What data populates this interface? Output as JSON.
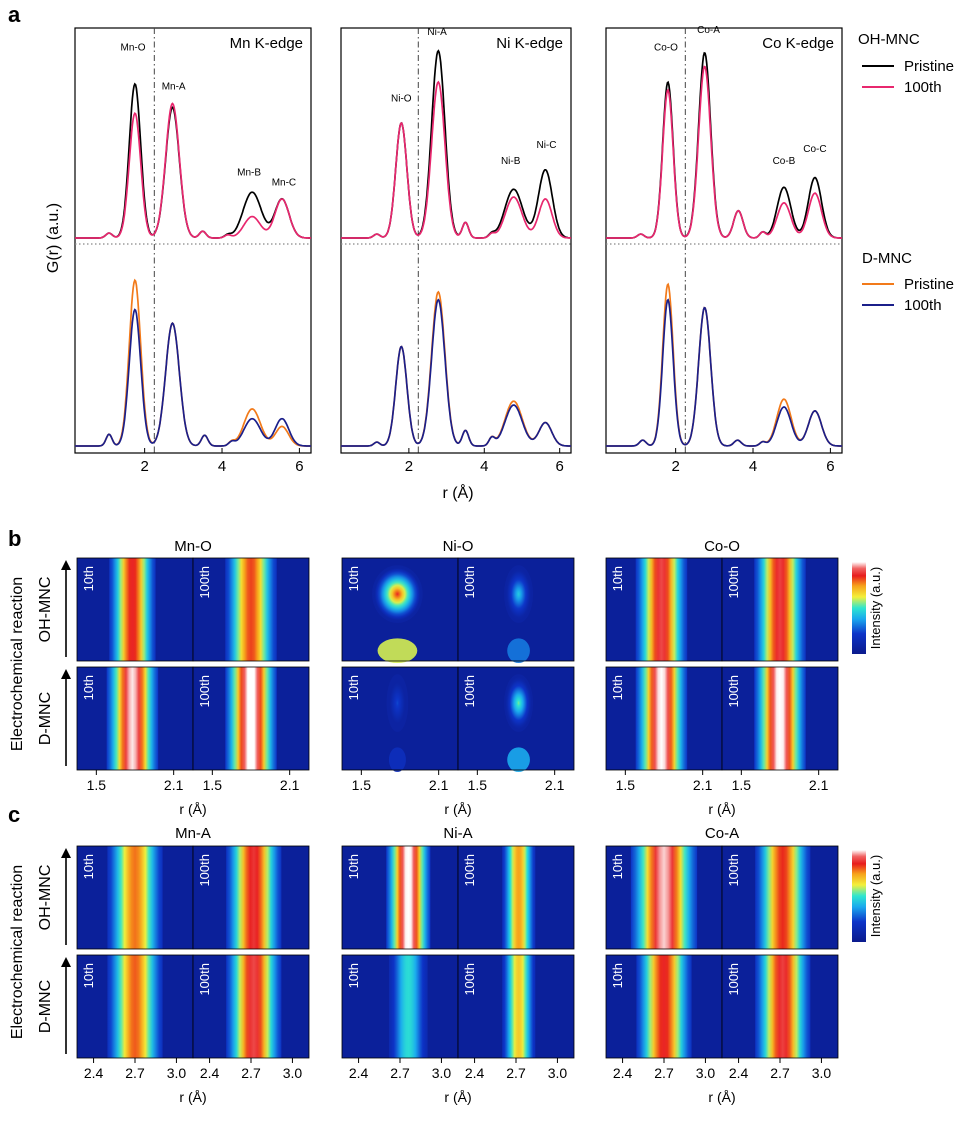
{
  "panel_labels": {
    "a": "a",
    "b": "b",
    "c": "c"
  },
  "colors": {
    "oh_pristine": "#000000",
    "oh_100th": "#e8276e",
    "d_pristine": "#f27a1a",
    "d_100th": "#1b1f8a"
  },
  "legend": {
    "oh_title": "OH-MNC",
    "oh_pristine": "Pristine",
    "oh_100th": "100th",
    "d_title": "D-MNC",
    "d_pristine": "Pristine",
    "d_100th": "100th"
  },
  "heatmap_text": {
    "intensity_label": "Intensity (a.u.)",
    "y_axis_label": "Electrochemical reaction",
    "row_labels": [
      "OH-MNC",
      "D-MNC"
    ],
    "cycle_labels": [
      "10th",
      "100th"
    ]
  },
  "chart_data": [
    {
      "id": "a",
      "type": "line",
      "ylabel": "G(r) (a.u.)",
      "xlabel": "r (Å)",
      "xlim": [
        0.2,
        6.3
      ],
      "xticks": [
        "2",
        "4",
        "6"
      ],
      "dashdot_r": 2.25,
      "panels": [
        {
          "title": "Mn K-edge",
          "peak_labels": [
            {
              "text": "Mn-O",
              "r": 1.7,
              "y": 0.94
            },
            {
              "text": "Mn-A",
              "r": 2.75,
              "y": 0.74
            },
            {
              "text": "Mn-B",
              "r": 4.7,
              "y": 0.3
            },
            {
              "text": "Mn-C",
              "r": 5.6,
              "y": 0.25
            }
          ],
          "oh": {
            "base": [
              [
                1.08,
                0.025,
                0.12
              ],
              [
                3.5,
                0.035,
                0.12
              ],
              [
                4.15,
                0.015,
                0.12
              ]
            ],
            "pristine": [
              [
                1.75,
                0.79,
                0.21
              ],
              [
                2.72,
                0.67,
                0.25
              ],
              [
                4.78,
                0.235,
                0.33
              ],
              [
                5.55,
                0.2,
                0.26
              ]
            ],
            "cycled": [
              [
                1.75,
                0.64,
                0.21
              ],
              [
                2.72,
                0.69,
                0.25
              ],
              [
                4.78,
                0.11,
                0.3
              ],
              [
                5.55,
                0.2,
                0.26
              ]
            ]
          },
          "d": {
            "base": [
              [
                1.08,
                0.06,
                0.11
              ],
              [
                3.55,
                0.055,
                0.12
              ],
              [
                4.25,
                0.02,
                0.11
              ]
            ],
            "pristine": [
              [
                1.75,
                0.85,
                0.21
              ],
              [
                2.72,
                0.63,
                0.25
              ],
              [
                4.78,
                0.19,
                0.3
              ],
              [
                5.55,
                0.1,
                0.24
              ]
            ],
            "cycled": [
              [
                1.75,
                0.7,
                0.21
              ],
              [
                2.72,
                0.63,
                0.25
              ],
              [
                4.78,
                0.14,
                0.3
              ],
              [
                5.55,
                0.14,
                0.25
              ]
            ]
          }
        },
        {
          "title": "Ni K-edge",
          "peak_labels": [
            {
              "text": "Ni-O",
              "r": 1.8,
              "y": 0.68
            },
            {
              "text": "Ni-A",
              "r": 2.75,
              "y": 1.02
            },
            {
              "text": "Ni-B",
              "r": 4.7,
              "y": 0.36
            },
            {
              "text": "Ni-C",
              "r": 5.65,
              "y": 0.44
            }
          ],
          "oh": {
            "base": [
              [
                1.15,
                0.02,
                0.12
              ],
              [
                3.5,
                0.08,
                0.12
              ],
              [
                4.2,
                0.02,
                0.11
              ]
            ],
            "pristine": [
              [
                1.8,
                0.59,
                0.21
              ],
              [
                2.78,
                0.96,
                0.25
              ],
              [
                4.78,
                0.25,
                0.33
              ],
              [
                5.62,
                0.35,
                0.26
              ]
            ],
            "cycled": [
              [
                1.8,
                0.59,
                0.21
              ],
              [
                2.78,
                0.8,
                0.25
              ],
              [
                4.78,
                0.21,
                0.31
              ],
              [
                5.62,
                0.2,
                0.25
              ]
            ]
          },
          "d": {
            "base": [
              [
                1.15,
                0.02,
                0.11
              ],
              [
                3.5,
                0.08,
                0.12
              ],
              [
                4.2,
                0.04,
                0.11
              ]
            ],
            "pristine": [
              [
                1.8,
                0.51,
                0.21
              ],
              [
                2.78,
                0.79,
                0.25
              ],
              [
                4.78,
                0.23,
                0.32
              ],
              [
                5.62,
                0.12,
                0.24
              ]
            ],
            "cycled": [
              [
                1.8,
                0.51,
                0.21
              ],
              [
                2.78,
                0.75,
                0.25
              ],
              [
                4.78,
                0.21,
                0.32
              ],
              [
                5.62,
                0.12,
                0.24
              ]
            ]
          }
        },
        {
          "title": "Co K-edge",
          "peak_labels": [
            {
              "text": "Co-O",
              "r": 1.75,
              "y": 0.94
            },
            {
              "text": "Co-A",
              "r": 2.85,
              "y": 1.03
            },
            {
              "text": "Co-B",
              "r": 4.8,
              "y": 0.36
            },
            {
              "text": "Co-C",
              "r": 5.6,
              "y": 0.42
            }
          ],
          "oh": {
            "base": [
              [
                1.1,
                0.02,
                0.12
              ],
              [
                3.62,
                0.14,
                0.17
              ],
              [
                4.25,
                0.03,
                0.11
              ]
            ],
            "pristine": [
              [
                1.8,
                0.8,
                0.19
              ],
              [
                2.75,
                0.95,
                0.22
              ],
              [
                4.8,
                0.26,
                0.25
              ],
              [
                5.6,
                0.31,
                0.24
              ]
            ],
            "cycled": [
              [
                1.8,
                0.76,
                0.19
              ],
              [
                2.75,
                0.88,
                0.22
              ],
              [
                4.8,
                0.18,
                0.25
              ],
              [
                5.6,
                0.23,
                0.24
              ]
            ]
          },
          "d": {
            "base": [
              [
                1.15,
                0.03,
                0.12
              ],
              [
                3.6,
                0.03,
                0.13
              ],
              [
                4.25,
                0.02,
                0.11
              ]
            ],
            "pristine": [
              [
                1.8,
                0.83,
                0.19
              ],
              [
                2.75,
                0.71,
                0.22
              ],
              [
                4.8,
                0.24,
                0.26
              ],
              [
                5.6,
                0.18,
                0.24
              ]
            ],
            "cycled": [
              [
                1.8,
                0.75,
                0.19
              ],
              [
                2.75,
                0.71,
                0.22
              ],
              [
                4.8,
                0.2,
                0.26
              ],
              [
                5.6,
                0.18,
                0.24
              ]
            ]
          }
        }
      ]
    },
    {
      "id": "b",
      "type": "heatmap",
      "xlabel": "r (Å)",
      "tick_labels": [
        "1.5",
        "2.1"
      ],
      "x_range": [
        1.35,
        2.25
      ],
      "panels": [
        {
          "title": "Mn-O",
          "maps": [
            {
              "cx": 1.78,
              "w": 0.09,
              "peak": 0.8
            },
            {
              "cx": 1.8,
              "w": 0.1,
              "peak": 0.76
            },
            {
              "cx": 1.78,
              "w": 0.1,
              "peak": 0.93
            },
            {
              "cx": 1.8,
              "w": 0.1,
              "peak": 0.97
            }
          ]
        },
        {
          "title": "Ni-O",
          "maps": [
            {
              "cx": 1.78,
              "w": 0.14,
              "peak": 0.86,
              "blob": true
            },
            {
              "cx": 1.82,
              "w": 0.08,
              "peak": 0.45,
              "blob": true
            },
            {
              "cx": 1.78,
              "w": 0.06,
              "peak": 0.25,
              "blob": true
            },
            {
              "cx": 1.82,
              "w": 0.08,
              "peak": 0.55,
              "blob": true
            }
          ]
        },
        {
          "title": "Co-O",
          "maps": [
            {
              "cx": 1.78,
              "w": 0.1,
              "peak": 0.84
            },
            {
              "cx": 1.8,
              "w": 0.1,
              "peak": 0.83
            },
            {
              "cx": 1.78,
              "w": 0.1,
              "peak": 0.95
            },
            {
              "cx": 1.8,
              "w": 0.1,
              "peak": 0.96
            }
          ]
        }
      ]
    },
    {
      "id": "c",
      "type": "heatmap",
      "xlabel": "r (Å)",
      "tick_labels": [
        "2.4",
        "2.7",
        "3.0"
      ],
      "x_range": [
        2.28,
        3.12
      ],
      "panels": [
        {
          "title": "Mn-A",
          "maps": [
            {
              "cx": 2.7,
              "w": 0.1,
              "peak": 0.72
            },
            {
              "cx": 2.72,
              "w": 0.1,
              "peak": 0.82
            },
            {
              "cx": 2.7,
              "w": 0.1,
              "peak": 0.74
            },
            {
              "cx": 2.72,
              "w": 0.1,
              "peak": 0.84
            }
          ]
        },
        {
          "title": "Ni-A",
          "maps": [
            {
              "cx": 2.76,
              "w": 0.08,
              "peak": 0.96
            },
            {
              "cx": 2.72,
              "w": 0.06,
              "peak": 0.68
            },
            {
              "cx": 2.76,
              "w": 0.07,
              "peak": 0.42
            },
            {
              "cx": 2.72,
              "w": 0.06,
              "peak": 0.62
            }
          ]
        },
        {
          "title": "Co-A",
          "maps": [
            {
              "cx": 2.7,
              "w": 0.12,
              "peak": 0.92
            },
            {
              "cx": 2.72,
              "w": 0.1,
              "peak": 0.78
            },
            {
              "cx": 2.7,
              "w": 0.1,
              "peak": 0.8
            },
            {
              "cx": 2.72,
              "w": 0.1,
              "peak": 0.83
            }
          ]
        }
      ]
    }
  ]
}
